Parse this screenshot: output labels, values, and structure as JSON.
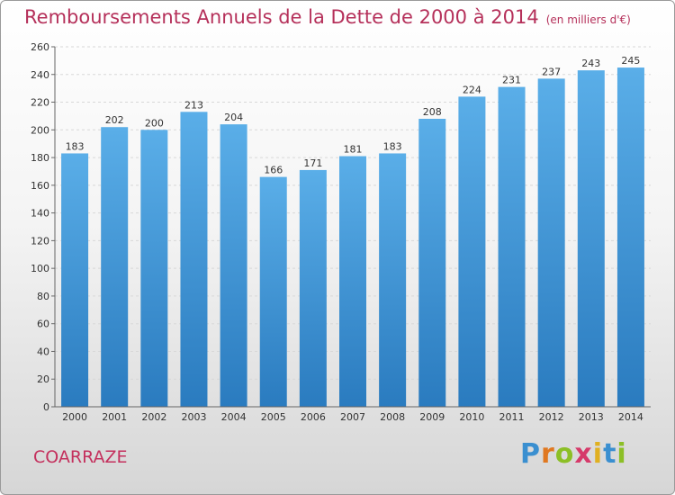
{
  "header": {
    "title": "Remboursements Annuels de la Dette de 2000 à 2014",
    "unit": "(en milliers d'€)"
  },
  "footer": {
    "commune": "COARRAZE",
    "logo_text": "Proxiti"
  },
  "colors": {
    "bar_top": "#5aaee8",
    "bar_bottom": "#2a7bbf",
    "title": "#b5305a"
  },
  "chart_data": {
    "type": "bar",
    "title": "Remboursements Annuels de la Dette de 2000 à 2014",
    "xlabel": "",
    "ylabel": "",
    "categories": [
      "2000",
      "2001",
      "2002",
      "2003",
      "2004",
      "2005",
      "2006",
      "2007",
      "2008",
      "2009",
      "2010",
      "2011",
      "2012",
      "2013",
      "2014"
    ],
    "values": [
      183,
      202,
      200,
      213,
      204,
      166,
      171,
      181,
      183,
      208,
      224,
      231,
      237,
      243,
      245
    ],
    "ylim": [
      0,
      260
    ],
    "yticks": [
      0,
      20,
      40,
      60,
      80,
      100,
      120,
      140,
      160,
      180,
      200,
      220,
      240,
      260
    ],
    "grid": true,
    "legend": "none"
  }
}
